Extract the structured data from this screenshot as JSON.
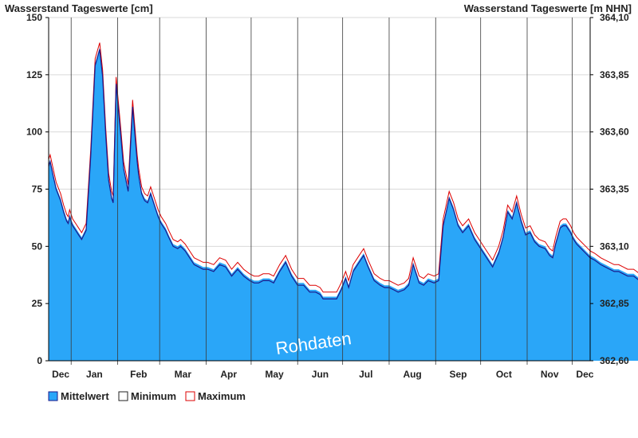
{
  "chart_data": {
    "type": "area",
    "left_axis_title": "Wasserstand Tageswerte [cm]",
    "right_axis_title": "Wasserstand Tageswerte [m NHN]",
    "left_ticks": [
      "0",
      "25",
      "50",
      "75",
      "100",
      "125",
      "150"
    ],
    "left_tick_values": [
      0,
      25,
      50,
      75,
      100,
      125,
      150
    ],
    "right_ticks": [
      "362,60",
      "362,85",
      "363,10",
      "363,35",
      "363,60",
      "363,85",
      "364,10"
    ],
    "ylim": [
      0,
      150
    ],
    "x_labels": [
      "Dec",
      "Jan",
      "Feb",
      "Mar",
      "Apr",
      "May",
      "Jun",
      "Jul",
      "Aug",
      "Sep",
      "Oct",
      "Nov",
      "Dec"
    ],
    "month_lengths": [
      31,
      31,
      28,
      31,
      30,
      31,
      30,
      31,
      31,
      30,
      31,
      30,
      31
    ],
    "watermark": "Rohdaten",
    "grid": true,
    "legend_position": "bottom-left",
    "colors": {
      "mean": "#2aa6f8",
      "min": "#1a1a8c",
      "max": "#dd0000",
      "grid": "#d9d9d9"
    },
    "series": [
      {
        "name": "Mittelwert",
        "x": [
          0,
          1,
          3,
          5,
          8,
          10,
          12,
          13,
          14,
          16,
          18,
          20,
          22,
          25,
          28,
          31,
          34,
          36,
          38,
          40,
          42,
          43,
          45,
          48,
          50,
          53,
          56,
          59,
          60,
          62,
          64,
          66,
          68,
          71,
          73,
          75,
          77,
          78,
          80,
          83,
          86,
          88,
          91,
          94,
          97,
          100,
          103,
          106,
          110,
          114,
          118,
          122,
          126,
          130,
          134,
          137,
          140,
          143,
          147,
          150,
          154,
          158,
          162,
          166,
          170,
          174,
          178,
          181,
          183,
          186,
          189,
          192,
          195,
          198,
          200,
          203,
          207,
          210,
          213,
          217,
          221,
          224,
          227,
          230,
          233,
          237,
          240,
          243,
          247,
          250,
          253,
          257,
          260,
          263,
          267,
          270,
          273,
          276,
          280,
          284,
          288,
          292,
          296,
          300,
          303,
          306,
          309,
          312,
          315,
          318,
          321,
          324,
          327,
          331,
          334,
          336,
          338,
          341,
          343,
          345,
          348,
          350,
          352,
          355,
          358,
          361,
          364,
          366,
          368,
          371,
          374,
          377,
          380,
          383,
          386,
          390,
          392,
          394,
          397,
          400,
          402,
          405,
          407,
          410,
          412,
          415,
          418,
          421,
          424,
          426,
          428,
          430,
          433,
          434,
          436,
          438
        ],
        "values": [
          86,
          88,
          82,
          76,
          71,
          66,
          62,
          61,
          64,
          60,
          58,
          56,
          54,
          58,
          90,
          130,
          137,
          125,
          100,
          80,
          72,
          70,
          122,
          100,
          85,
          75,
          112,
          88,
          82,
          74,
          71,
          70,
          74,
          68,
          64,
          61,
          59,
          58,
          55,
          51,
          50,
          51,
          49,
          46,
          43,
          42,
          41,
          41,
          40,
          43,
          42,
          38,
          41,
          38,
          36,
          35,
          35,
          36,
          36,
          35,
          40,
          44,
          38,
          34,
          34,
          31,
          31,
          30,
          28,
          28,
          28,
          28,
          32,
          37,
          33,
          40,
          44,
          47,
          42,
          36,
          34,
          33,
          33,
          32,
          31,
          32,
          34,
          43,
          35,
          34,
          36,
          35,
          36,
          60,
          72,
          67,
          60,
          57,
          60,
          54,
          50,
          46,
          42,
          48,
          55,
          66,
          63,
          70,
          62,
          56,
          57,
          53,
          51,
          50,
          47,
          46,
          52,
          59,
          60,
          60,
          57,
          54,
          52,
          50,
          48,
          46,
          45,
          44,
          43,
          42,
          41,
          40,
          40,
          39,
          38,
          38,
          37,
          36,
          36,
          36,
          35,
          35,
          34,
          34,
          33,
          33,
          32,
          32,
          31,
          31,
          30,
          30,
          30,
          29,
          29,
          28
        ],
        "offsets_min": -2,
        "offsets_max": 2
      }
    ],
    "legend": [
      {
        "label": "Mittelwert",
        "key": "mean"
      },
      {
        "label": "Minimum",
        "key": "min"
      },
      {
        "label": "Maximum",
        "key": "max"
      }
    ]
  }
}
